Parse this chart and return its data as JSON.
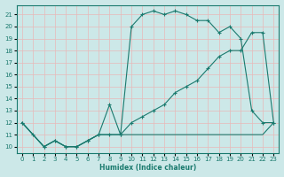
{
  "xlabel": "Humidex (Indice chaleur)",
  "bg_color": "#cce8e8",
  "line_color": "#1a7a6e",
  "xlim": [
    -0.5,
    23.5
  ],
  "ylim": [
    9.5,
    21.8
  ],
  "xticks": [
    0,
    1,
    2,
    3,
    4,
    5,
    6,
    7,
    8,
    9,
    10,
    11,
    12,
    13,
    14,
    15,
    16,
    17,
    18,
    19,
    20,
    21,
    22,
    23
  ],
  "yticks": [
    10,
    11,
    12,
    13,
    14,
    15,
    16,
    17,
    18,
    19,
    20,
    21
  ],
  "line1_x": [
    0,
    1,
    2,
    3,
    4,
    5,
    6,
    7,
    8,
    9,
    10,
    11,
    12,
    13,
    14,
    15,
    16,
    17,
    18,
    19,
    20,
    21,
    22,
    23
  ],
  "line1_y": [
    12,
    11,
    10,
    10.5,
    10,
    10,
    10.5,
    11,
    11,
    11,
    11,
    11,
    11,
    11,
    11,
    11,
    11,
    11,
    11,
    11,
    11,
    11,
    11,
    12
  ],
  "line2_x": [
    0,
    1,
    2,
    3,
    4,
    5,
    6,
    7,
    8,
    9,
    10,
    11,
    12,
    13,
    14,
    15,
    16,
    17,
    18,
    19,
    20,
    21,
    22,
    23
  ],
  "line2_y": [
    12,
    11,
    10,
    10.5,
    10,
    10,
    10.5,
    11,
    13.5,
    11,
    20,
    21,
    21.3,
    21,
    21.3,
    21,
    20.5,
    20.5,
    19.5,
    20,
    19,
    13,
    12,
    12
  ],
  "line3_x": [
    0,
    2,
    3,
    4,
    5,
    6,
    7,
    8,
    9,
    10,
    11,
    12,
    13,
    14,
    15,
    16,
    17,
    18,
    19,
    20,
    21,
    22,
    23
  ],
  "line3_y": [
    12,
    10,
    10.5,
    10,
    10,
    10.5,
    11,
    11,
    11,
    12,
    12.5,
    13,
    13.5,
    14.5,
    15,
    15.5,
    16.5,
    17.5,
    18,
    18,
    19.5,
    19.5,
    12
  ]
}
